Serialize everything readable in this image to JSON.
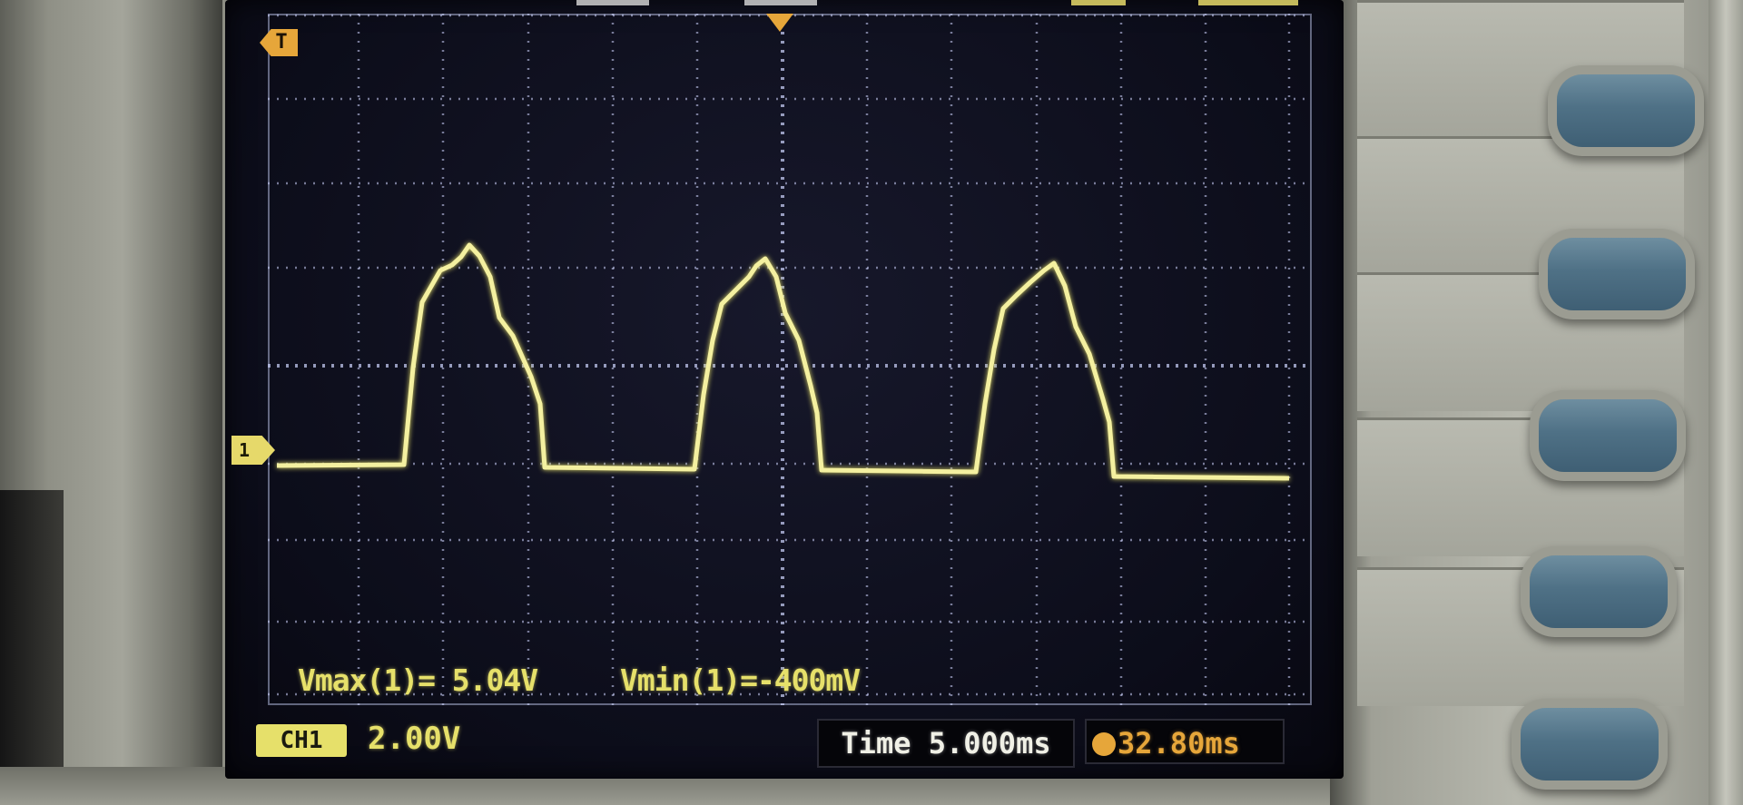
{
  "measurements": {
    "vmax": "Vmax(1)= 5.04V",
    "vmin": "Vmin(1)=-400mV"
  },
  "channel": {
    "badge": "CH1",
    "scale": "2.00V",
    "color": "#e6e06a"
  },
  "timebase": {
    "time_label": "Time 5.000ms",
    "trigger_offset": "32.80ms",
    "trigger_color": "#e6a63a"
  },
  "markers": {
    "trigger_marker": "T",
    "channel_marker": "1"
  },
  "icons": {
    "trigger_position": "trigger-t-marker",
    "channel_ground": "channel-ground-arrow",
    "horizontal_position": "horizontal-position-arrow",
    "trigger_offset": "trigger-offset-icon"
  },
  "waveform": {
    "type": "half-wave rectified sine",
    "volts_per_div": 2.0,
    "time_per_div_ms": 5.0,
    "peak_v": 5.04,
    "min_v": -0.4,
    "pulse_count": 3
  },
  "softkeys": 5
}
